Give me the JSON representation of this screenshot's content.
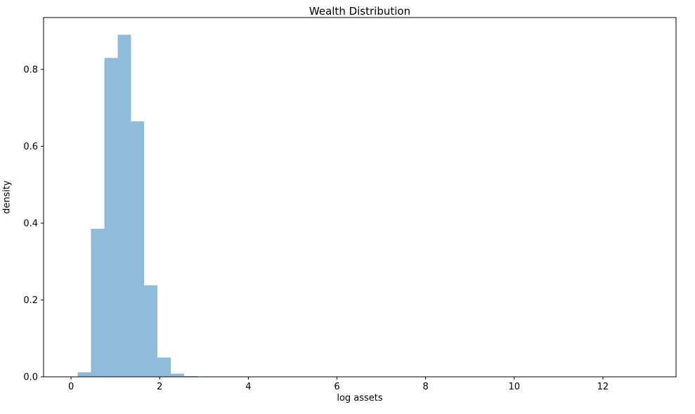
{
  "chart_data": {
    "type": "bar",
    "subtype": "histogram",
    "title": "Wealth Distribution",
    "xlabel": "log assets",
    "ylabel": "density",
    "bar_color": "#8fbcdb",
    "background_color": "#ffffff",
    "axis_color": "#000000",
    "grid": false,
    "legend": "none",
    "bin_edges": [
      0.15,
      0.45,
      0.75,
      1.05,
      1.35,
      1.65,
      1.95,
      2.25,
      2.55,
      2.85,
      3.15
    ],
    "densities": [
      0.012,
      0.385,
      0.83,
      0.89,
      0.665,
      0.238,
      0.05,
      0.008,
      0.002,
      0.001
    ],
    "xlim": [
      -0.62,
      13.65
    ],
    "ylim": [
      0,
      0.935
    ],
    "x_ticks": [
      0,
      2,
      4,
      6,
      8,
      10,
      12
    ],
    "y_ticks": [
      0.0,
      0.2,
      0.4,
      0.6,
      0.8
    ]
  }
}
